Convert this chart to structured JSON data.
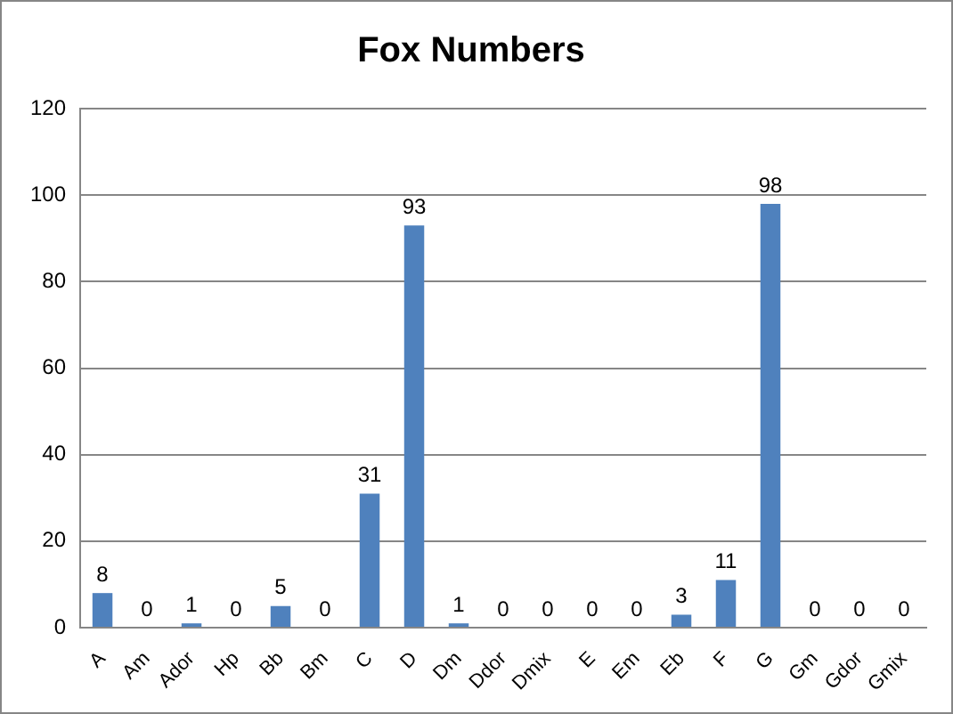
{
  "chart_data": {
    "type": "bar",
    "title": "Fox Numbers",
    "categories": [
      "A",
      "Am",
      "Ador",
      "Hp",
      "Bb",
      "Bm",
      "C",
      "D",
      "Dm",
      "Ddor",
      "Dmix",
      "E",
      "Em",
      "Eb",
      "F",
      "G",
      "Gm",
      "Gdor",
      "Gmix"
    ],
    "values": [
      8,
      0,
      1,
      0,
      5,
      0,
      31,
      93,
      1,
      0,
      0,
      0,
      0,
      3,
      11,
      98,
      0,
      0,
      0
    ],
    "color": "#4f81bd",
    "ylim": [
      0,
      120
    ],
    "yticks": [
      0,
      20,
      40,
      60,
      80,
      100,
      120
    ],
    "grid": "y",
    "data_labels": true,
    "legend": false
  }
}
